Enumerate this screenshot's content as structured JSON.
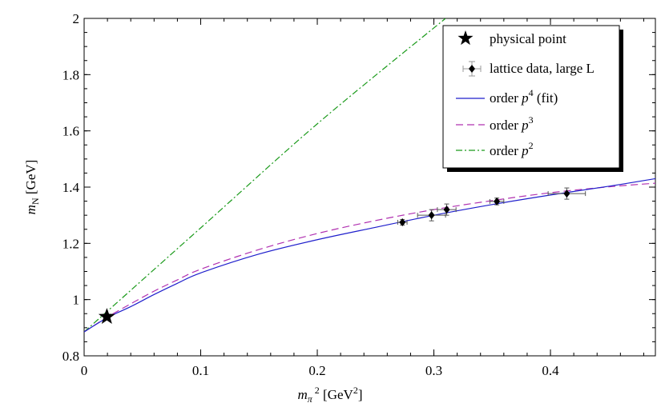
{
  "chart_data": {
    "type": "line",
    "xlabel": {
      "main": "m",
      "sub": "π",
      "sup": "2",
      "unit_open": " [GeV",
      "unit_sup": "2",
      "unit_close": "]"
    },
    "ylabel": {
      "main": "m",
      "sub": "N",
      "unit": " [GeV]"
    },
    "xlim": [
      0,
      0.49
    ],
    "ylim": [
      0.8,
      2.0
    ],
    "xticks": [
      0,
      0.1,
      0.2,
      0.3,
      0.4
    ],
    "xtick_labels": [
      "0",
      "0.1",
      "0.2",
      "0.3",
      "0.4"
    ],
    "yticks": [
      0.8,
      1.0,
      1.2,
      1.4,
      1.6,
      1.8,
      2.0
    ],
    "ytick_labels": [
      "0.8",
      "1",
      "1.2",
      "1.4",
      "1.6",
      "1.8",
      "2"
    ],
    "grid": false,
    "legend_position": "top-right",
    "colors": {
      "p4": "#1f1fcc",
      "p3": "#b030b0",
      "p2": "#1a9a1a",
      "data": "#000000"
    },
    "legend": {
      "physical": "physical point",
      "lattice": "lattice data, large L",
      "p4_prefix": "order ",
      "p4_p": "p",
      "p4_sup": "4",
      "p4_suffix": " (fit)",
      "p3_prefix": "order ",
      "p3_p": "p",
      "p3_sup": "3",
      "p2_prefix": "order ",
      "p2_p": "p",
      "p2_sup": "2"
    },
    "physical_point": {
      "x": 0.0195,
      "y": 0.939
    },
    "lattice_points": [
      {
        "x": 0.273,
        "y": 1.275,
        "xerr": 0.004,
        "yerr": 0.01
      },
      {
        "x": 0.298,
        "y": 1.3,
        "xerr": 0.012,
        "yerr": 0.02
      },
      {
        "x": 0.311,
        "y": 1.32,
        "xerr": 0.008,
        "yerr": 0.02
      },
      {
        "x": 0.354,
        "y": 1.349,
        "xerr": 0.006,
        "yerr": 0.012
      },
      {
        "x": 0.414,
        "y": 1.377,
        "xerr": 0.016,
        "yerr": 0.02
      }
    ],
    "series": [
      {
        "key": "p4",
        "dash": "solid",
        "x": [
          0,
          0.02,
          0.04,
          0.06,
          0.08,
          0.1,
          0.15,
          0.2,
          0.25,
          0.3,
          0.35,
          0.4,
          0.45,
          0.49
        ],
        "y": [
          0.885,
          0.936,
          0.975,
          1.018,
          1.058,
          1.095,
          1.162,
          1.213,
          1.257,
          1.3,
          1.338,
          1.372,
          1.403,
          1.43
        ]
      },
      {
        "key": "p3",
        "dash": "dashed",
        "x": [
          0,
          0.02,
          0.04,
          0.06,
          0.08,
          0.1,
          0.15,
          0.2,
          0.25,
          0.3,
          0.35,
          0.4,
          0.45,
          0.49
        ],
        "y": [
          0.885,
          0.938,
          0.985,
          1.03,
          1.07,
          1.108,
          1.178,
          1.235,
          1.281,
          1.32,
          1.352,
          1.38,
          1.401,
          1.414
        ]
      },
      {
        "key": "p2",
        "dash": "dashdot",
        "x": [
          0,
          0.1,
          0.2,
          0.31
        ],
        "y": [
          0.885,
          1.255,
          1.625,
          2.0
        ]
      }
    ]
  }
}
